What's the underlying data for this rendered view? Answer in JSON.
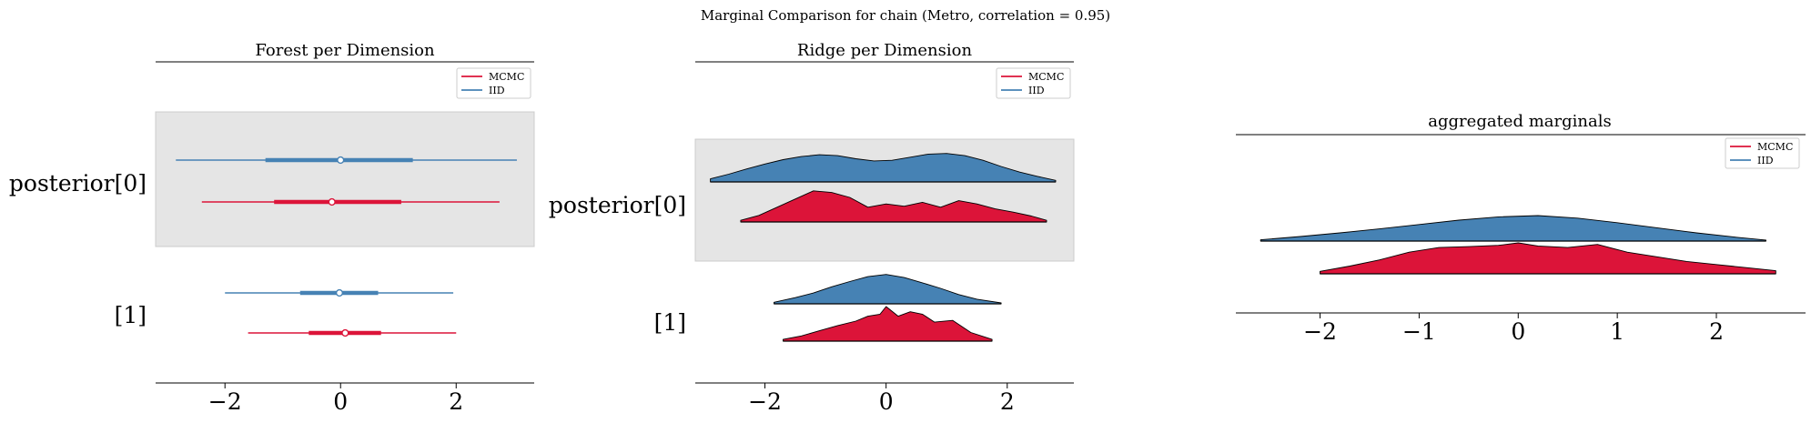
{
  "suptitle": "Marginal Comparison for chain (Metro, correlation = 0.95)",
  "colors": {
    "mcmc": "#dc1439",
    "iid": "#4682b4",
    "shade": "#e5e5e5"
  },
  "legend": {
    "mcmc": "MCMC",
    "iid": "IID"
  },
  "chart_data": [
    {
      "type": "forest",
      "title": "Forest per Dimension",
      "xlim": [
        -3.2,
        3.35
      ],
      "xticks": [
        -2,
        0,
        2
      ],
      "xtick_labels": [
        "−2",
        "0",
        "2"
      ],
      "legend_position": "top-right",
      "rows": [
        {
          "label": "posterior[0]",
          "shaded": true,
          "series": [
            {
              "name": "IID",
              "min": -2.85,
              "q1": -1.3,
              "median": 0.0,
              "q3": 1.25,
              "max": 3.05
            },
            {
              "name": "MCMC",
              "min": -2.4,
              "q1": -1.15,
              "median": -0.15,
              "q3": 1.05,
              "max": 2.75
            }
          ]
        },
        {
          "label": "[1]",
          "shaded": false,
          "series": [
            {
              "name": "IID",
              "min": -2.0,
              "q1": -0.7,
              "median": -0.02,
              "q3": 0.65,
              "max": 1.95
            },
            {
              "name": "MCMC",
              "min": -1.6,
              "q1": -0.55,
              "median": 0.08,
              "q3": 0.7,
              "max": 2.0
            }
          ]
        }
      ]
    },
    {
      "type": "ridge",
      "title": "Ridge per Dimension",
      "xlim": [
        -3.15,
        3.1
      ],
      "xticks": [
        -2,
        0,
        2
      ],
      "xtick_labels": [
        "−2",
        "0",
        "2"
      ],
      "legend_position": "top-right",
      "rows": [
        {
          "label": "posterior[0]",
          "shaded": true,
          "series": [
            {
              "name": "IID",
              "x": [
                -2.9,
                -2.6,
                -2.3,
                -2,
                -1.7,
                -1.4,
                -1.1,
                -0.8,
                -0.5,
                -0.2,
                0.1,
                0.4,
                0.7,
                1,
                1.3,
                1.6,
                1.9,
                2.2,
                2.5,
                2.8
              ],
              "density": [
                0.1,
                0.25,
                0.42,
                0.58,
                0.72,
                0.82,
                0.88,
                0.85,
                0.75,
                0.68,
                0.7,
                0.8,
                0.9,
                0.92,
                0.85,
                0.7,
                0.5,
                0.32,
                0.18,
                0.05
              ]
            },
            {
              "name": "MCMC",
              "x": [
                -2.4,
                -2.1,
                -1.8,
                -1.5,
                -1.2,
                -0.9,
                -0.6,
                -0.3,
                0,
                0.3,
                0.6,
                0.9,
                1.2,
                1.5,
                1.8,
                2.1,
                2.4,
                2.65
              ],
              "density": [
                0.05,
                0.2,
                0.45,
                0.7,
                0.95,
                0.9,
                0.75,
                0.45,
                0.55,
                0.48,
                0.6,
                0.45,
                0.65,
                0.55,
                0.4,
                0.3,
                0.18,
                0.05
              ]
            }
          ]
        },
        {
          "label": "[1]",
          "shaded": false,
          "series": [
            {
              "name": "IID",
              "x": [
                -1.85,
                -1.5,
                -1.2,
                -0.9,
                -0.6,
                -0.3,
                0,
                0.3,
                0.6,
                0.9,
                1.2,
                1.5,
                1.9
              ],
              "density": [
                0.05,
                0.2,
                0.35,
                0.55,
                0.72,
                0.88,
                0.95,
                0.85,
                0.68,
                0.5,
                0.3,
                0.15,
                0.03
              ]
            },
            {
              "name": "MCMC",
              "x": [
                -1.7,
                -1.4,
                -1.1,
                -0.8,
                -0.5,
                -0.3,
                -0.1,
                0,
                0.2,
                0.4,
                0.6,
                0.8,
                1.1,
                1.4,
                1.75
              ],
              "density": [
                0.05,
                0.15,
                0.3,
                0.45,
                0.58,
                0.72,
                0.78,
                1.0,
                0.72,
                0.85,
                0.78,
                0.55,
                0.6,
                0.25,
                0.05
              ]
            }
          ]
        }
      ]
    },
    {
      "type": "ridge",
      "title": "aggregated marginals",
      "xlim": [
        -2.85,
        2.9
      ],
      "xticks": [
        -2,
        -1,
        0,
        1,
        2
      ],
      "xtick_labels": [
        "−2",
        "−1",
        "0",
        "1",
        "2"
      ],
      "legend_position": "top-right",
      "rows": [
        {
          "label": "",
          "shaded": false,
          "series": [
            {
              "name": "IID",
              "x": [
                -2.6,
                -2.2,
                -1.8,
                -1.4,
                -1,
                -0.6,
                -0.2,
                0.2,
                0.6,
                1,
                1.4,
                1.8,
                2.2,
                2.5
              ],
              "density": [
                0.05,
                0.18,
                0.32,
                0.48,
                0.65,
                0.82,
                0.95,
                1.0,
                0.9,
                0.72,
                0.52,
                0.32,
                0.15,
                0.04
              ]
            },
            {
              "name": "MCMC",
              "x": [
                -2,
                -1.7,
                -1.4,
                -1.1,
                -0.8,
                -0.5,
                -0.2,
                0,
                0.2,
                0.5,
                0.8,
                1.1,
                1.4,
                1.7,
                2,
                2.3,
                2.6
              ],
              "density": [
                0.08,
                0.25,
                0.45,
                0.7,
                0.85,
                0.88,
                0.92,
                1.0,
                0.9,
                0.85,
                0.95,
                0.7,
                0.55,
                0.4,
                0.3,
                0.2,
                0.1
              ]
            }
          ]
        }
      ]
    }
  ]
}
